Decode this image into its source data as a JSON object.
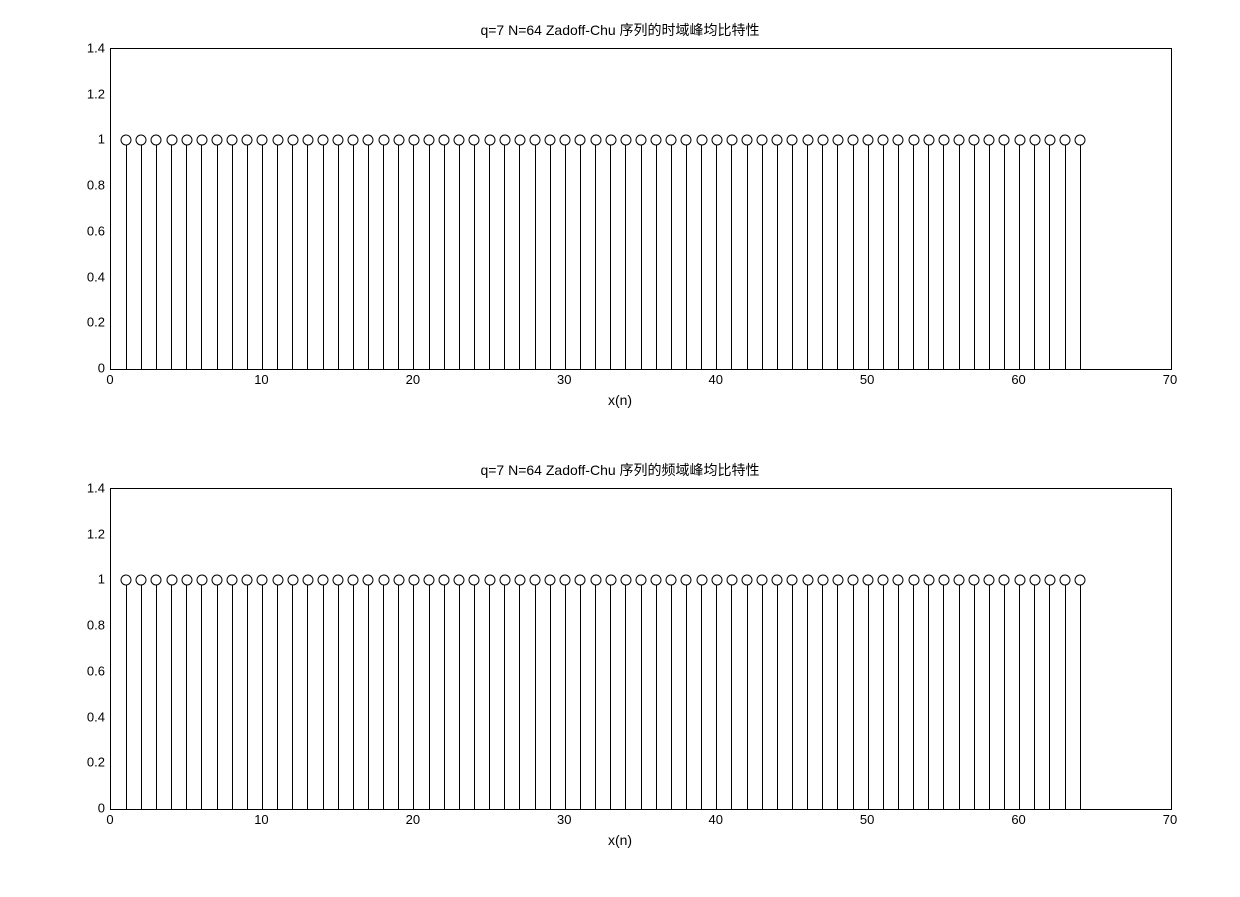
{
  "charts": [
    {
      "title": "q=7 N=64 Zadoff-Chu 序列的时域峰均比特性",
      "xlabel": "x(n)",
      "xlim": [
        0,
        70
      ],
      "ylim": [
        0,
        1.4
      ],
      "xticks": [
        0,
        10,
        20,
        30,
        40,
        50,
        60,
        70
      ],
      "yticks": [
        0,
        0.2,
        0.4,
        0.6,
        0.8,
        1,
        1.2,
        1.4
      ],
      "n_stems": 64,
      "x_start": 1,
      "x_step": 1,
      "stem_value": 1.0,
      "stem_color": "#000000",
      "marker_border": "#000000",
      "marker_fill": "#ffffff",
      "marker_size": 9,
      "background_color": "#ffffff",
      "border_color": "#000000",
      "title_fontsize": 14,
      "tick_fontsize": 13
    },
    {
      "title": "q=7 N=64 Zadoff-Chu 序列的频域峰均比特性",
      "xlabel": "x(n)",
      "xlim": [
        0,
        70
      ],
      "ylim": [
        0,
        1.4
      ],
      "xticks": [
        0,
        10,
        20,
        30,
        40,
        50,
        60,
        70
      ],
      "yticks": [
        0,
        0.2,
        0.4,
        0.6,
        0.8,
        1,
        1.2,
        1.4
      ],
      "n_stems": 64,
      "x_start": 1,
      "x_step": 1,
      "stem_value": 1.0,
      "stem_color": "#000000",
      "marker_border": "#000000",
      "marker_fill": "#ffffff",
      "marker_size": 9,
      "background_color": "#ffffff",
      "border_color": "#000000",
      "title_fontsize": 14,
      "tick_fontsize": 13
    }
  ]
}
